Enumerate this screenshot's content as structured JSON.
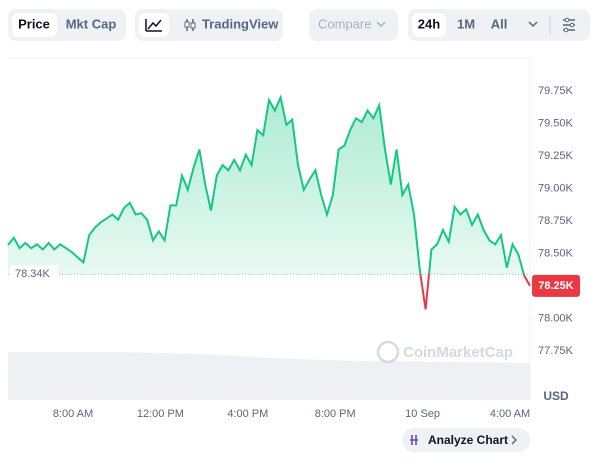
{
  "toolbar": {
    "view_tabs": [
      "Price",
      "Mkt Cap"
    ],
    "tradingview": "TradingView",
    "compare": "Compare",
    "range_tabs": [
      "24h",
      "1M",
      "All"
    ]
  },
  "chart_data": {
    "type": "line",
    "series": [
      {
        "color": "#16c784",
        "values": [
          78565,
          78620,
          78540,
          78580,
          78540,
          78570,
          78530,
          78580,
          78530,
          78570,
          78540,
          78510,
          78470,
          78430,
          78640,
          78700,
          78740,
          78770,
          78800,
          78760,
          78850,
          78890,
          78800,
          78810,
          78760,
          78600,
          78670,
          78600,
          78870,
          78870,
          79100,
          78990,
          79160,
          79300,
          79030,
          78830,
          79100,
          79180,
          79140,
          79220,
          79140,
          79260,
          79180,
          79450,
          79410,
          79680,
          79600,
          79700,
          79490,
          79530,
          79180,
          78990,
          79070,
          79140,
          78950,
          78800,
          78950,
          79300,
          79330,
          79450,
          79540,
          79510,
          79600,
          79540,
          79640,
          79300,
          79030,
          79300,
          78950,
          79030,
          78800,
          78370,
          78070,
          78530,
          78570,
          78680,
          78590,
          78860,
          78800,
          78840,
          78720,
          78800,
          78680,
          78600,
          78570,
          78640,
          78390,
          78570,
          78490,
          78330,
          78250
        ]
      }
    ],
    "down_color": "#ea3943",
    "ylim": [
      77380,
      80000
    ],
    "yticks": [
      {
        "value": 79750,
        "label": "79.75K"
      },
      {
        "value": 79500,
        "label": "79.50K"
      },
      {
        "value": 79250,
        "label": "79.25K"
      },
      {
        "value": 79000,
        "label": "79.00K"
      },
      {
        "value": 78750,
        "label": "78.75K"
      },
      {
        "value": 78500,
        "label": "78.50K"
      },
      {
        "value": 78000,
        "label": "78.00K"
      },
      {
        "value": 77750,
        "label": "77.75K"
      }
    ],
    "xtick_labels": [
      "8:00 AM",
      "12:00 PM",
      "4:00 PM",
      "8:00 PM",
      "10 Sep",
      "4:00 AM"
    ],
    "reference": {
      "value": 78340,
      "label": "78.34K"
    },
    "current": {
      "value": 78250,
      "label": "78.25K"
    },
    "y_axis_label": "USD",
    "watermark": "CoinMarketCap"
  },
  "analyze_button": "Analyze Chart"
}
